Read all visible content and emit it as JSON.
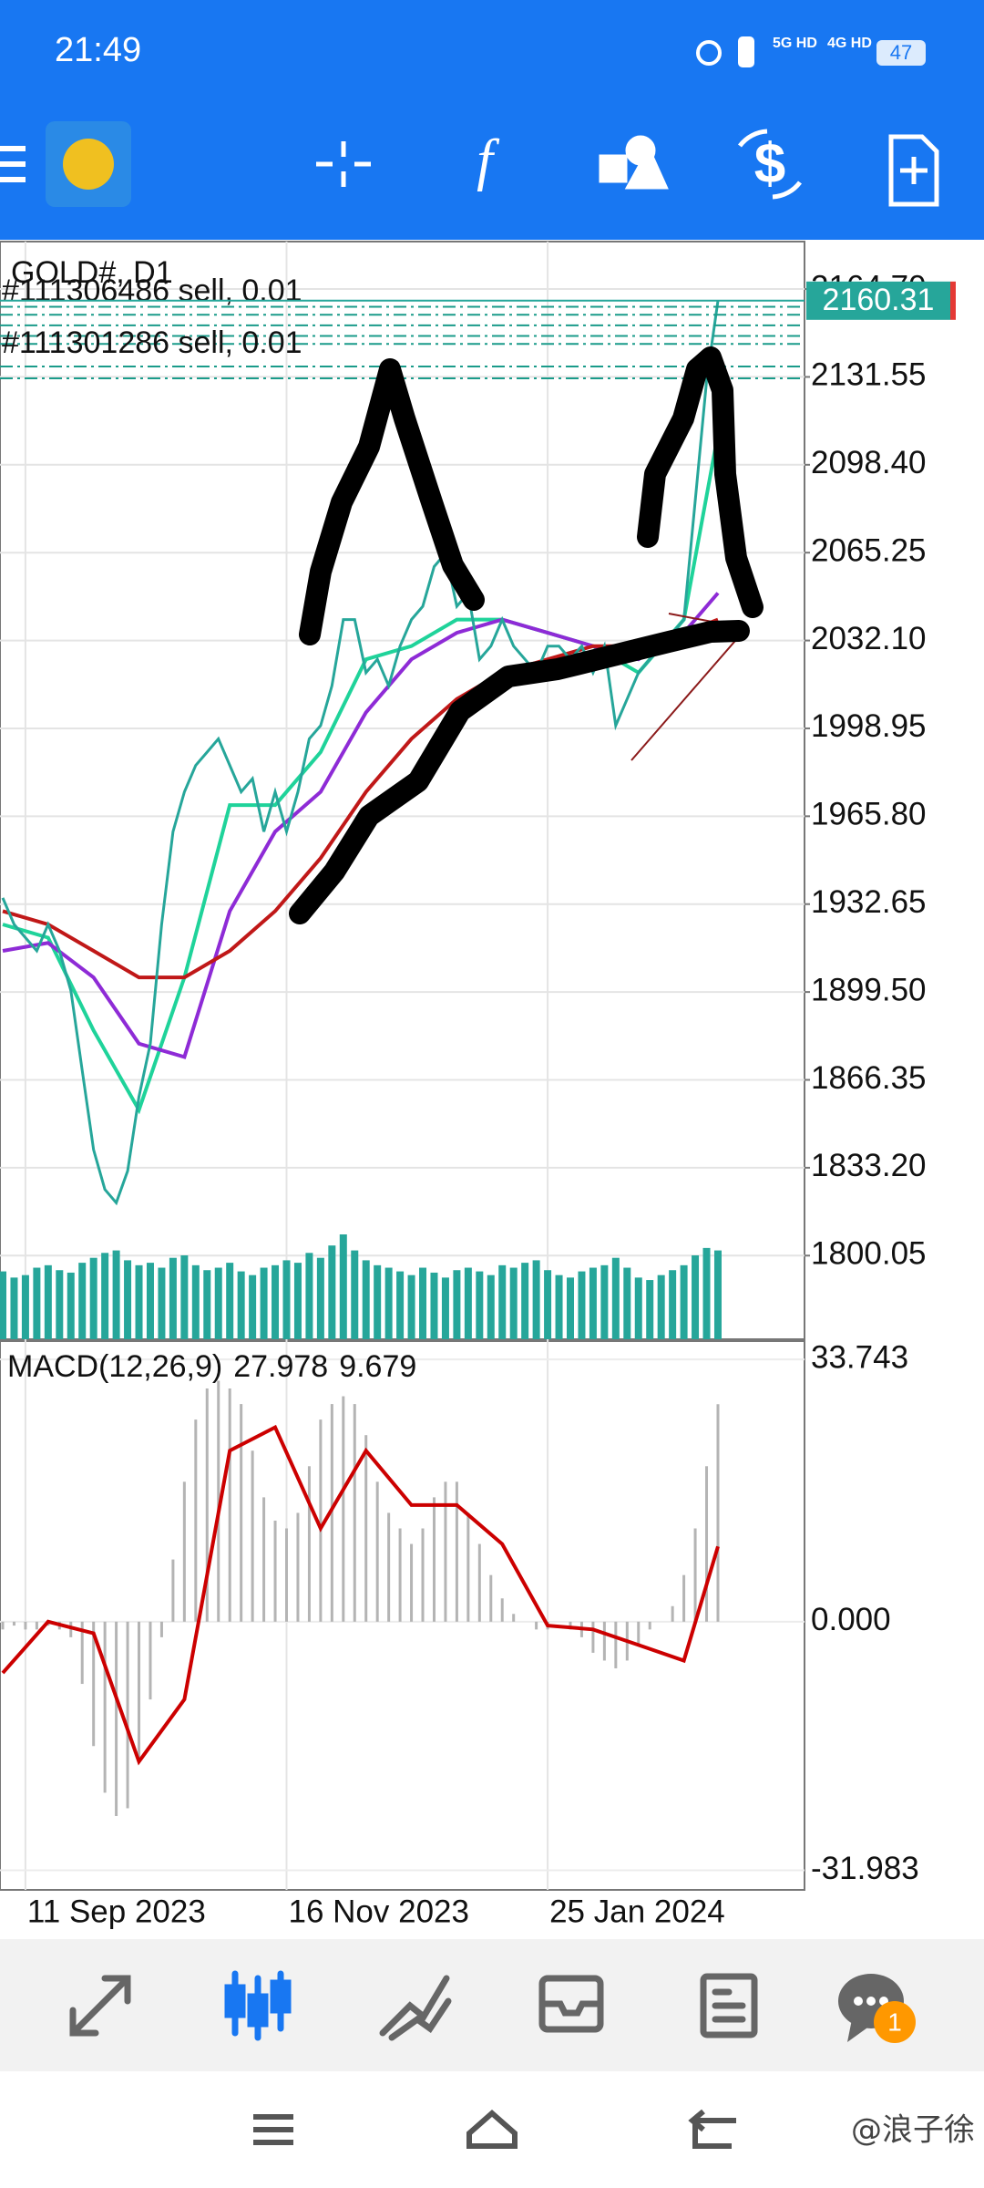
{
  "status_bar": {
    "time": "21:49",
    "net1": "5G HD",
    "net2": "4G HD",
    "battery": "47"
  },
  "chart_data": [
    {
      "type": "line",
      "title": "GOLD#, D1",
      "categories": [
        null,
        null,
        "11 Sep 2023",
        null,
        null,
        null,
        null,
        null,
        null,
        null,
        null,
        null,
        null,
        null,
        null,
        null,
        null,
        null,
        null,
        null,
        null,
        null,
        null,
        null,
        null,
        "16 Nov 2023",
        null,
        null,
        null,
        null,
        null,
        null,
        null,
        null,
        null,
        null,
        null,
        null,
        null,
        null,
        null,
        null,
        null,
        null,
        null,
        null,
        null,
        null,
        "25 Jan 2024",
        null,
        null,
        null,
        null,
        null,
        null,
        null,
        null,
        null,
        null,
        null,
        null,
        null,
        null,
        null
      ],
      "ylim": [
        1768.5,
        2182.6
      ],
      "yticks": [
        {
          "value": 2164.7,
          "label": "2164.70"
        },
        2131.55,
        {
          "value": 2098.4,
          "label": "2098.40"
        },
        2065.25,
        {
          "value": 2032.1,
          "label": "2032.10"
        },
        1998.95,
        {
          "value": 1965.8,
          "label": "1965.80"
        },
        1932.65,
        {
          "value": 1899.5,
          "label": "1899.50"
        },
        1866.35,
        {
          "value": 1833.2,
          "label": "1833.20"
        },
        1800.05
      ],
      "grid": true,
      "current_price": {
        "value": 2160.31,
        "color": "#26a69a"
      },
      "orders": [
        {
          "label": "#111306486 sell, 0.01",
          "price": 2155
        },
        {
          "label": "#111301286 sell, 0.01",
          "price": 2135.5
        }
      ],
      "order_levels": [
        2158,
        2151,
        2147,
        2144,
        2131
      ],
      "order_color": "#1a9b8a",
      "series": [
        {
          "color": "#26a69a",
          "values": [
            1935,
            1925,
            1920,
            1915,
            1925,
            1915,
            1900,
            1870,
            1840,
            1825,
            1820,
            1832,
            1860,
            1880,
            1925,
            1960,
            1975,
            1985,
            1990,
            1995,
            1985,
            1975,
            1980,
            1960,
            1975,
            1960,
            1975,
            1995,
            2000,
            2015,
            2040,
            2040,
            2020,
            2025,
            2015,
            2030,
            2040,
            2045,
            2060,
            2065,
            2045,
            2050,
            2025,
            2030,
            2040,
            2030,
            2025,
            2020,
            2030,
            2030,
            2025,
            2030,
            2020,
            2030,
            2000,
            2010,
            2020,
            2025,
            2030,
            2035,
            2040,
            2085,
            2130,
            2160.31
          ]
        }
      ],
      "moving_averages": {
        "x": [
          0,
          4,
          8,
          12,
          16,
          20,
          24,
          28,
          32,
          36,
          40,
          44,
          48,
          52,
          56,
          60,
          63
        ],
        "series": [
          {
            "color": "#1fd39a",
            "values": [
              1925,
              1920,
              1885,
              1855,
              1905,
              1970,
              1970,
              1990,
              2025,
              2030,
              2040,
              2040,
              2035,
              2030,
              2020,
              2040,
              2110
            ]
          },
          {
            "color": "#8e2bd6",
            "values": [
              1915,
              1918,
              1905,
              1880,
              1875,
              1930,
              1960,
              1975,
              2005,
              2025,
              2035,
              2040,
              2035,
              2030,
              2025,
              2035,
              2050
            ]
          },
          {
            "color": "#c01818",
            "values": [
              1930,
              1925,
              1915,
              1905,
              1905,
              1915,
              1930,
              1950,
              1975,
              1995,
              2010,
              2020,
              2025,
              2030,
              2030,
              2035,
              2040
            ]
          }
        ]
      },
      "volume": {
        "color": "#26a69a",
        "values": [
          55,
          50,
          52,
          58,
          60,
          56,
          54,
          62,
          66,
          70,
          72,
          64,
          60,
          62,
          58,
          66,
          68,
          60,
          56,
          58,
          62,
          55,
          52,
          58,
          60,
          64,
          62,
          70,
          66,
          76,
          85,
          72,
          64,
          60,
          58,
          55,
          52,
          58,
          54,
          50,
          56,
          58,
          55,
          52,
          60,
          58,
          62,
          64,
          56,
          52,
          50,
          55,
          58,
          60,
          66,
          58,
          50,
          48,
          52,
          56,
          60,
          68,
          74,
          72
        ]
      }
    },
    {
      "type": "bar",
      "title": "MACD(12,26,9)",
      "ylim": [
        -34.5,
        36.1
      ],
      "yticks": [
        33.743,
        {
          "value": 0,
          "label": "0.000"
        },
        -31.983
      ],
      "color": "#b4b4b4",
      "values": [
        -1,
        -0.5,
        -1,
        -1,
        -0.5,
        -1,
        -2,
        -8,
        -16,
        -22,
        -25,
        -24,
        -18,
        -10,
        -2,
        8,
        18,
        26,
        30,
        31,
        30,
        28,
        22,
        16,
        13,
        12,
        14,
        20,
        26,
        28,
        29,
        28,
        24,
        18,
        14,
        12,
        10,
        12,
        16,
        18,
        18,
        14,
        10,
        6,
        3,
        1,
        0,
        -1,
        -1,
        0,
        -1,
        -2,
        -4,
        -5,
        -6,
        -5,
        -3,
        -1,
        0,
        2,
        6,
        12,
        20,
        27.978
      ],
      "signal": {
        "color": "#cc0000",
        "x": [
          0,
          4,
          8,
          12,
          16,
          20,
          24,
          28,
          32,
          36,
          40,
          44,
          48,
          52,
          56,
          60,
          63
        ],
        "values": [
          -6.6,
          0,
          -1.5,
          -18,
          -10,
          22,
          25,
          12,
          22,
          15,
          15,
          10,
          -0.5,
          -1,
          -3,
          -5,
          9.679
        ]
      }
    }
  ],
  "bottom_nav": {
    "badge": "1"
  },
  "watermark": "@浪子徐"
}
